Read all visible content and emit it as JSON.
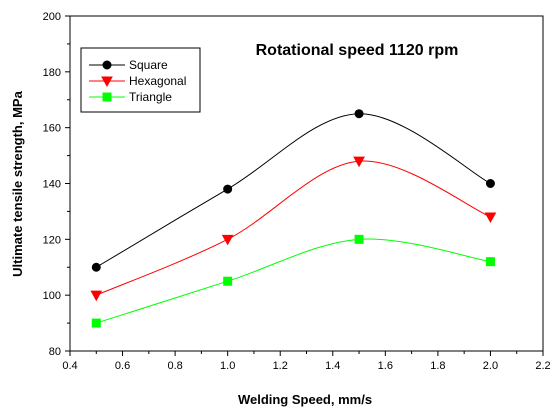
{
  "chart_data": {
    "type": "line",
    "title": "Rotational speed 1120 rpm",
    "xlabel": "Welding Speed, mm/s",
    "ylabel": "Ultimate tensile strength, MPa",
    "xlim": [
      0.4,
      2.2
    ],
    "ylim": [
      80,
      200
    ],
    "x_ticks": [
      "0.4",
      "0.6",
      "0.8",
      "1.0",
      "1.2",
      "1.4",
      "1.6",
      "1.8",
      "2.0",
      "2.2"
    ],
    "y_ticks": [
      "80",
      "100",
      "120",
      "140",
      "160",
      "180",
      "200"
    ],
    "grid": false,
    "legend_position": "top-left",
    "x": [
      0.5,
      1.0,
      1.5,
      2.0
    ],
    "series": [
      {
        "name": "Square",
        "values": [
          110,
          138,
          165,
          140
        ],
        "color": "#000000",
        "marker": "circle"
      },
      {
        "name": "Hexagonal",
        "values": [
          100,
          120,
          148,
          128
        ],
        "color": "#ff0000",
        "marker": "triangle-down"
      },
      {
        "name": "Triangle",
        "values": [
          90,
          105,
          120,
          112
        ],
        "color": "#00ff00",
        "marker": "square"
      }
    ]
  }
}
